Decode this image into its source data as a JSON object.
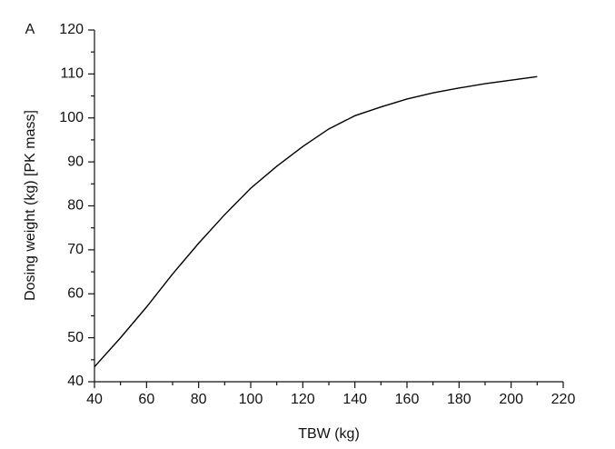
{
  "chart_data": {
    "type": "line",
    "panel_label": "A",
    "xlabel": "TBW (kg)",
    "ylabel": "Dosing weight (kg) [PK mass]",
    "x": [
      40,
      50,
      60,
      70,
      80,
      90,
      100,
      110,
      120,
      130,
      140,
      150,
      160,
      170,
      180,
      190,
      200,
      210
    ],
    "series": [
      {
        "color": "#000000",
        "values": [
          43.4,
          50,
          57,
          64.5,
          71.5,
          78,
          84,
          89,
          93.5,
          97.5,
          100.5,
          102.5,
          104.3,
          105.7,
          106.8,
          107.8,
          108.6,
          109.4
        ]
      }
    ],
    "xlim": [
      40,
      220
    ],
    "xticks": [
      40,
      60,
      80,
      100,
      120,
      140,
      160,
      180,
      200,
      220
    ],
    "ylim": [
      40,
      120
    ],
    "yticks": [
      40,
      50,
      60,
      70,
      80,
      90,
      100,
      110,
      120
    ]
  }
}
